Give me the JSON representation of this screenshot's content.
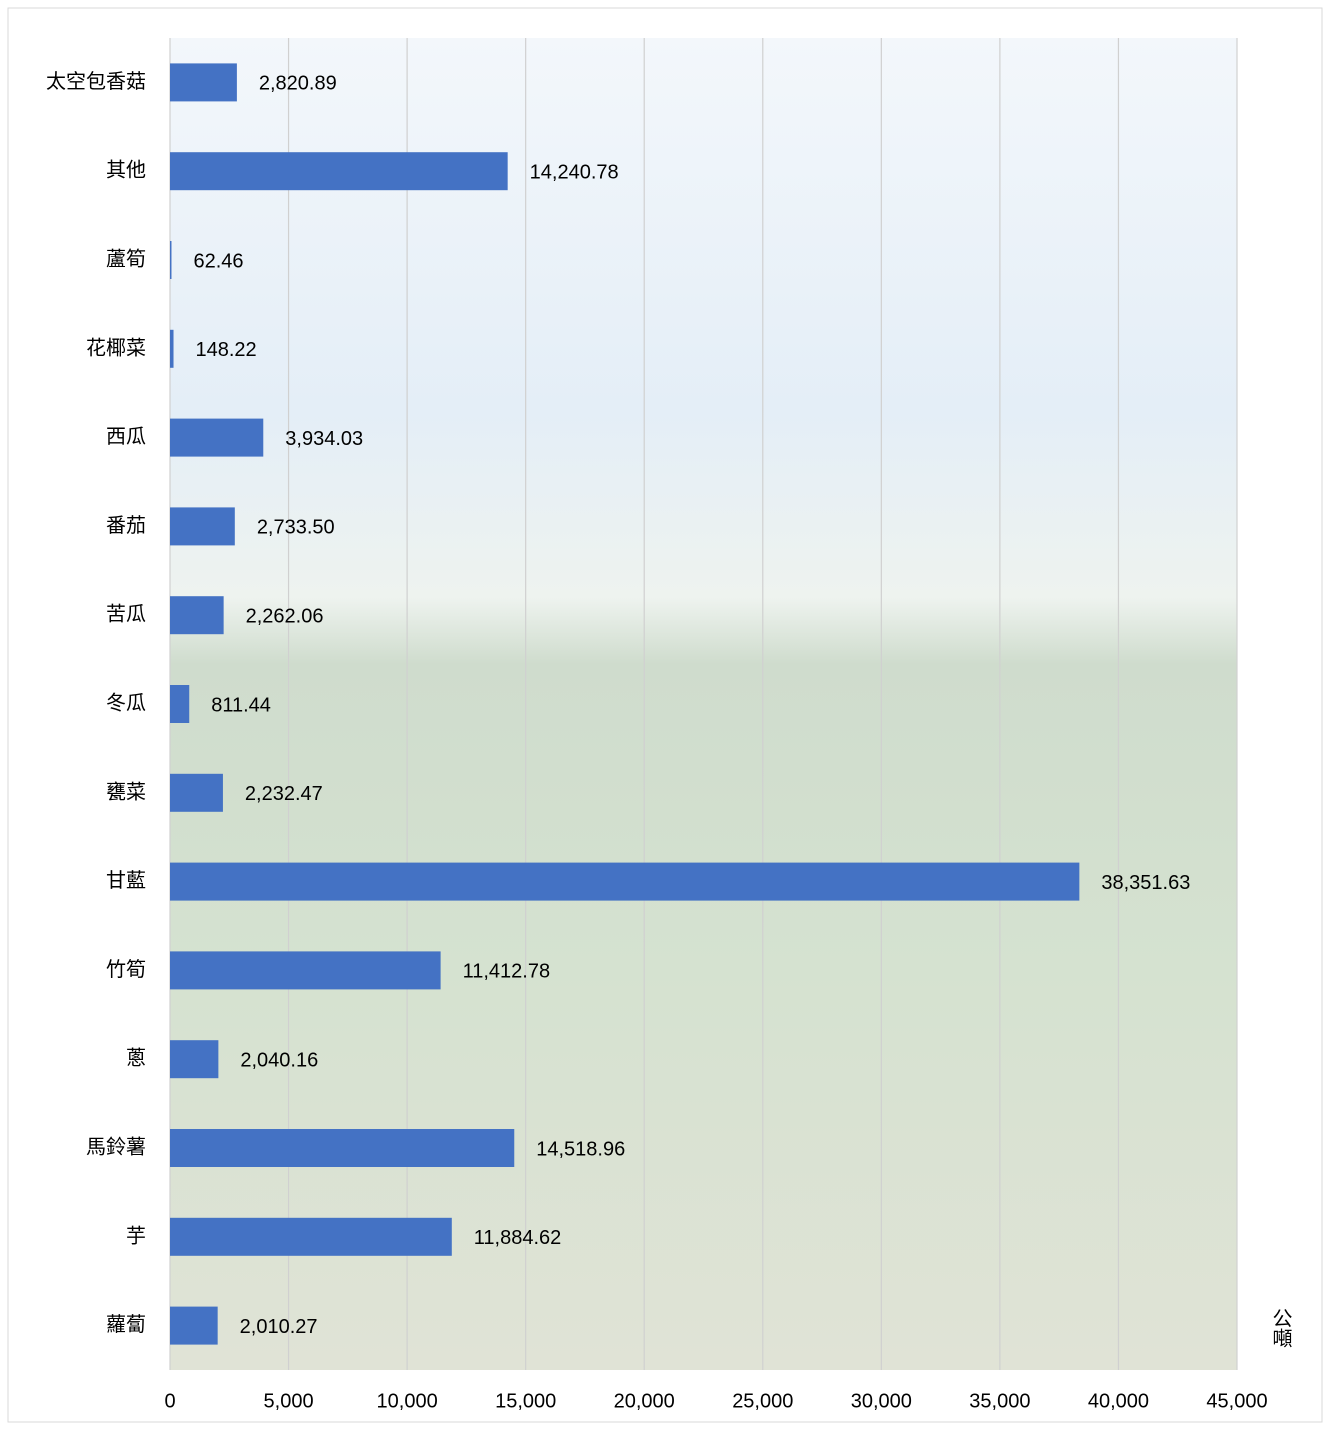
{
  "chart_data": {
    "type": "bar",
    "orientation": "horizontal",
    "categories": [
      "太空包香菇",
      "其他",
      "蘆筍",
      "花椰菜",
      "西瓜",
      "番茄",
      "苦瓜",
      "冬瓜",
      "甕菜",
      "甘藍",
      "竹筍",
      "蔥",
      "馬鈴薯",
      "芋",
      "蘿蔔"
    ],
    "values": [
      2820.89,
      14240.78,
      62.46,
      148.22,
      3934.03,
      2733.5,
      2262.06,
      811.44,
      2232.47,
      38351.63,
      11412.78,
      2040.16,
      14518.96,
      11884.62,
      2010.27
    ],
    "value_labels": [
      "2,820.89",
      "14,240.78",
      "62.46",
      "148.22",
      "3,934.03",
      "2,733.50",
      "2,262.06",
      "811.44",
      "2,232.47",
      "38,351.63",
      "11,412.78",
      "2,040.16",
      "14,518.96",
      "11,884.62",
      "2,010.27"
    ],
    "color": "#4472c4",
    "x_label": "公噸",
    "xlim": [
      0,
      45000
    ],
    "xticks": [
      0,
      {
        "value": 5000,
        "label": "5,000"
      },
      {
        "value": 10000,
        "label": "10,000"
      },
      {
        "value": 15000,
        "label": "15,000"
      },
      {
        "value": 20000,
        "label": "20,000"
      },
      {
        "value": 25000,
        "label": "25,000"
      },
      {
        "value": 30000,
        "label": "30,000"
      },
      {
        "value": 35000,
        "label": "35,000"
      },
      {
        "value": 40000,
        "label": "40,000"
      },
      {
        "value": 45000,
        "label": "45,000"
      }
    ],
    "grid": true
  }
}
